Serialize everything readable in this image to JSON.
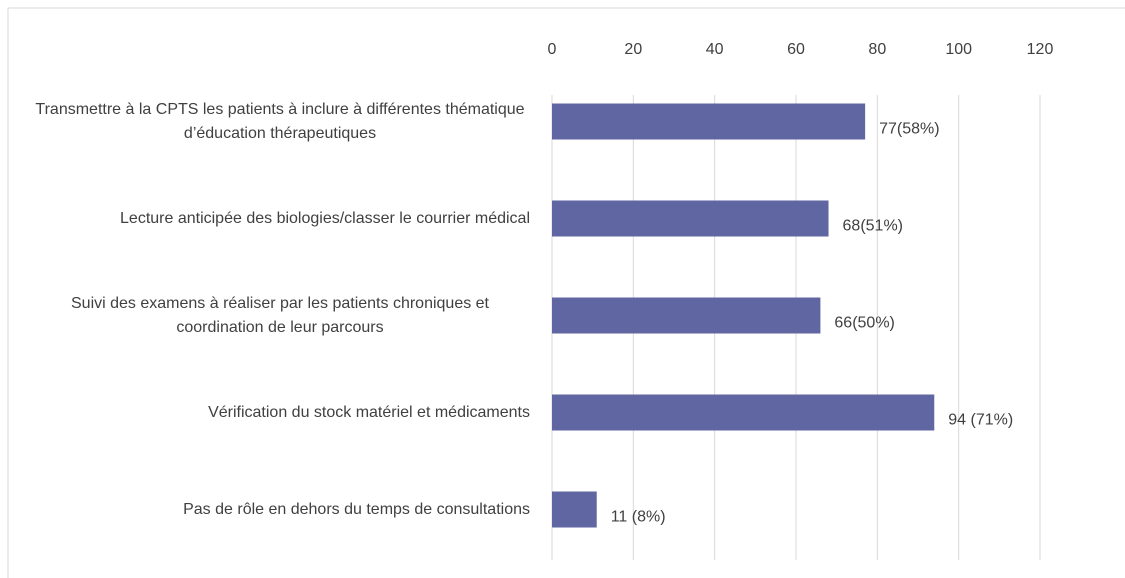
{
  "chart_data": {
    "type": "bar",
    "orientation": "horizontal",
    "categories": [
      "Transmettre à la CPTS les patients à inclure à différentes thématique d’éducation thérapeutiques",
      "Lecture anticipée des biologies/classer le courrier médical",
      "Suivi des examens à réaliser par les patients chroniques et coordination de leur parcours",
      "Vérification du stock matériel et médicaments",
      "Pas de rôle en dehors du temps de consultations"
    ],
    "values": [
      77,
      68,
      66,
      94,
      11
    ],
    "value_labels": [
      "77(58%)",
      "68(51%)",
      "66(50%)",
      "94 (71%)",
      "11 (8%)"
    ],
    "color": "#5f66a1",
    "xlim": [
      0,
      120
    ],
    "xticks": [
      0,
      20,
      40,
      60,
      80,
      100,
      120
    ],
    "grid": true
  }
}
